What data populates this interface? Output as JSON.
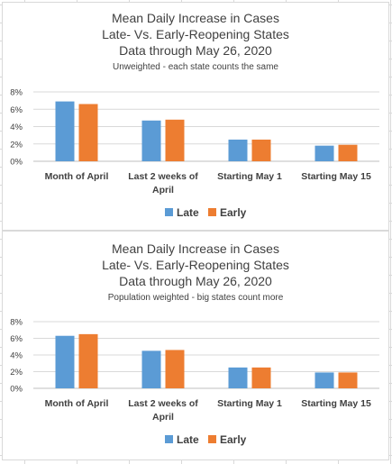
{
  "chart_data": [
    {
      "type": "bar",
      "title": "Mean Daily Increase in Cases",
      "title_line2": "Late- Vs. Early-Reopening States",
      "title_line3": "Data through May 26, 2020",
      "subtitle": "Unweighted - each state counts the same",
      "categories": [
        [
          "Month of April"
        ],
        [
          "Last 2 weeks of",
          "April"
        ],
        [
          "Starting May 1"
        ],
        [
          "Starting May 15"
        ]
      ],
      "series": [
        {
          "name": "Late",
          "color": "#5b9bd5",
          "values": [
            6.9,
            4.7,
            2.5,
            1.8
          ]
        },
        {
          "name": "Early",
          "color": "#ed7d31",
          "values": [
            6.6,
            4.8,
            2.5,
            1.9
          ]
        }
      ],
      "ylim": [
        0,
        8
      ],
      "yticks": [
        "0%",
        "2%",
        "4%",
        "6%",
        "8%"
      ],
      "y_tick_values": [
        0,
        2,
        4,
        6,
        8
      ],
      "grid": true,
      "legend_position": "bottom"
    },
    {
      "type": "bar",
      "title": "Mean Daily Increase in Cases",
      "title_line2": "Late- Vs. Early-Reopening States",
      "title_line3": "Data through May 26, 2020",
      "subtitle": "Population weighted - big states count more",
      "categories": [
        [
          "Month of April"
        ],
        [
          "Last 2 weeks of",
          "April"
        ],
        [
          "Starting May 1"
        ],
        [
          "Starting May 15"
        ]
      ],
      "series": [
        {
          "name": "Late",
          "color": "#5b9bd5",
          "values": [
            6.3,
            4.5,
            2.5,
            1.9
          ]
        },
        {
          "name": "Early",
          "color": "#ed7d31",
          "values": [
            6.5,
            4.6,
            2.5,
            1.9
          ]
        }
      ],
      "ylim": [
        0,
        8
      ],
      "yticks": [
        "0%",
        "2%",
        "4%",
        "6%",
        "8%"
      ],
      "y_tick_values": [
        0,
        2,
        4,
        6,
        8
      ],
      "grid": true,
      "legend_position": "bottom"
    }
  ]
}
